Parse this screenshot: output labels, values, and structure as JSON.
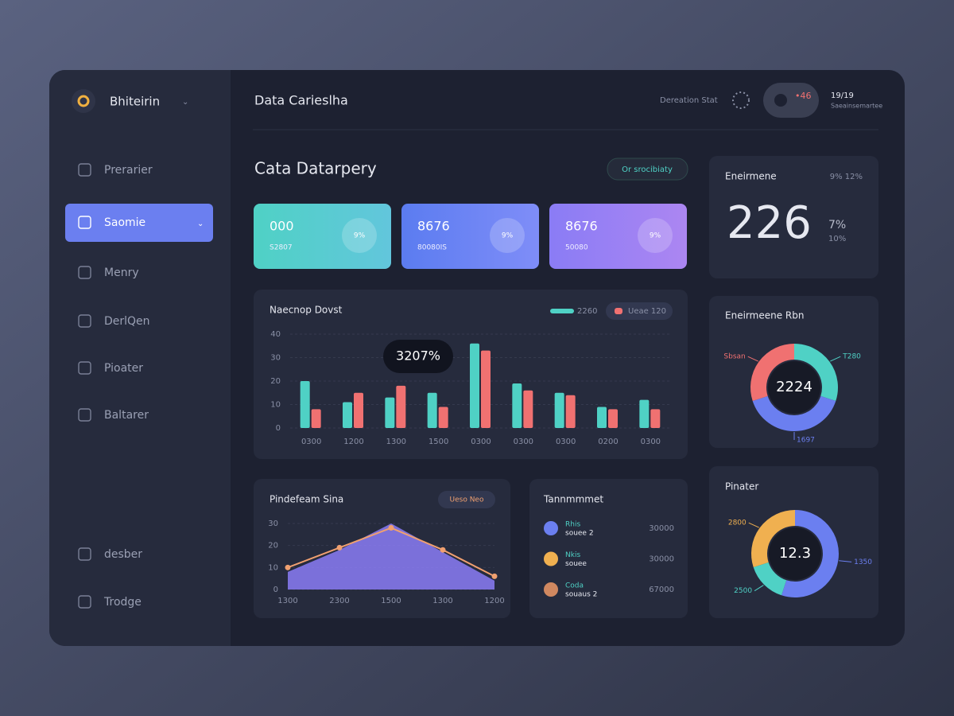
{
  "sidebar": {
    "brand": "Bhiteirin",
    "items": [
      "Prerarier",
      "Saomie",
      "Menry",
      "DerlQen",
      "Pioater",
      "Baltarer"
    ],
    "bottom_items": [
      "desber",
      "Trodge"
    ]
  },
  "header": {
    "title": "Data Carieslha",
    "search": "Dereation Stat",
    "badge": "•46",
    "user": "19/19",
    "user_sub": "Saeainsemartee"
  },
  "page": {
    "title": "Cata Datarpery",
    "button": "Or srocibiaty"
  },
  "stats": [
    {
      "value": "000",
      "label": "S2807",
      "badge": "9%"
    },
    {
      "value": "8676",
      "label": "80080IS",
      "badge": "9%"
    },
    {
      "value": "8676",
      "label": "50080",
      "badge": "9%"
    }
  ],
  "kpi": {
    "title": "Eneirmene",
    "meta": "9% 12%",
    "value": "226",
    "change": "7%",
    "sub": "10%"
  },
  "transactions": {
    "title": "Tannmmmet",
    "rows": [
      {
        "name": "Rhis",
        "sub": "souee 2",
        "value": "30000"
      },
      {
        "name": "Nkis",
        "sub": "souee",
        "value": "30000"
      },
      {
        "name": "Coda",
        "sub": "souaus 2",
        "value": "67000"
      }
    ]
  },
  "chart_data": [
    {
      "type": "bar",
      "title": "Naecnop Dovst",
      "categories": [
        "0300",
        "1200",
        "1300",
        "1500",
        "0300",
        "0300",
        "0300",
        "0200",
        "0300"
      ],
      "series": [
        {
          "name": "2260",
          "color": "#4fd1c5",
          "values": [
            20,
            11,
            13,
            15,
            36,
            19,
            15,
            9,
            12
          ]
        },
        {
          "name": "Ueae 120",
          "color": "#f07171",
          "values": [
            8,
            15,
            18,
            9,
            33,
            16,
            14,
            8,
            8
          ]
        }
      ],
      "ylim": [
        0,
        40
      ],
      "yticks": [
        0,
        10,
        20,
        30,
        40
      ],
      "grid": true,
      "annotation": "3207%"
    },
    {
      "type": "area",
      "title": "Pindefeam Sina",
      "button": "Ueso Neo",
      "categories": [
        "1300",
        "2300",
        "1500",
        "1300",
        "1200"
      ],
      "series": [
        {
          "color": "#8b7cf6",
          "fill": true,
          "values": [
            8,
            18,
            30,
            17,
            4
          ]
        },
        {
          "color": "#f0a070",
          "fill": false,
          "values": [
            10,
            19,
            28,
            18,
            6
          ]
        }
      ],
      "ylim": [
        0,
        30
      ],
      "yticks": [
        0,
        10,
        20,
        30
      ],
      "grid": true
    },
    {
      "type": "donut",
      "title": "Eneirmeene Rbn",
      "center_label": "2224",
      "categories": [
        "T280",
        "1697",
        "Sbsan"
      ],
      "values": [
        30,
        40,
        30
      ],
      "colors": [
        "#4fd1c5",
        "#6b7ff0",
        "#f07171"
      ]
    },
    {
      "type": "donut",
      "title": "Pinater",
      "center_label": "12.3",
      "categories": [
        "1350",
        "2500",
        "2800"
      ],
      "values": [
        55,
        15,
        30
      ],
      "colors": [
        "#6b7ff0",
        "#4fd1c5",
        "#f0b050"
      ]
    }
  ]
}
